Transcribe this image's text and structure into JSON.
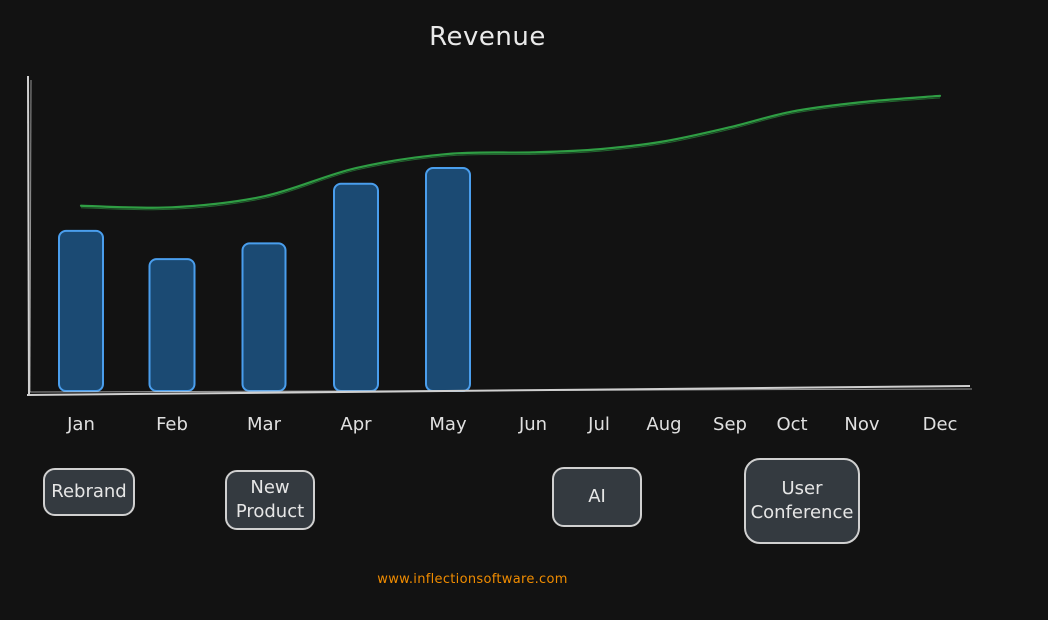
{
  "chart_data": {
    "type": "bar",
    "title": "Revenue",
    "categories": [
      "Jan",
      "Feb",
      "Mar",
      "Apr",
      "May",
      "Jun",
      "Jul",
      "Aug",
      "Sep",
      "Oct",
      "Nov",
      "Dec"
    ],
    "series": [
      {
        "type": "bar",
        "values": [
          51,
          42,
          47,
          66,
          71,
          null,
          null,
          null,
          null,
          null,
          null,
          null
        ]
      },
      {
        "type": "line",
        "values": [
          59,
          58.5,
          62,
          71,
          75.5,
          76,
          77,
          79.5,
          84,
          89,
          92,
          94
        ]
      }
    ],
    "ylim": [
      0,
      100
    ],
    "grid": false,
    "annotations": [
      {
        "label": "Rebrand",
        "month": "Jan"
      },
      {
        "label": "New\nProduct",
        "month": "Mar"
      },
      {
        "label": "AI",
        "month": "Jul"
      },
      {
        "label": "User\nConference",
        "month": "Oct"
      }
    ],
    "colors": {
      "bar_fill": "#1b4a73",
      "bar_stroke": "#4a9eed",
      "line": "#2f9e44",
      "axis": "#d0d0d0"
    }
  },
  "footer": "www.inflectionsoftware.com"
}
